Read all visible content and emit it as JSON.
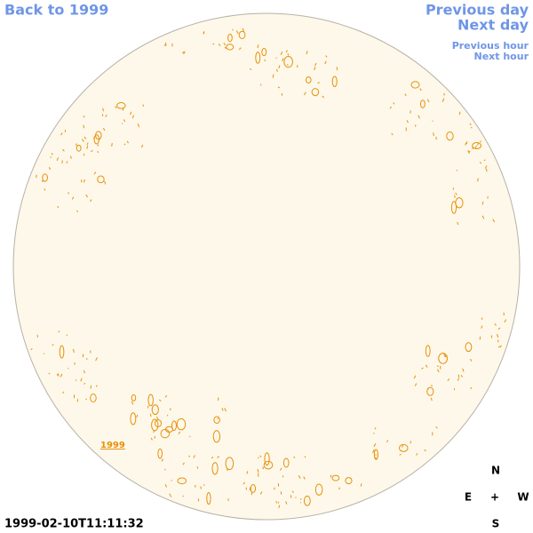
{
  "nav": {
    "back": "Back to 1999",
    "previous_day": "Previous day",
    "next_day": "Next day",
    "previous_hour": "Previous hour",
    "next_hour": "Next hour"
  },
  "disk_label": "1999",
  "timestamp": "1999-02-10T11:11:32",
  "compass": {
    "north": "N",
    "east": "E",
    "center": "+",
    "west": "W",
    "south": "S"
  }
}
